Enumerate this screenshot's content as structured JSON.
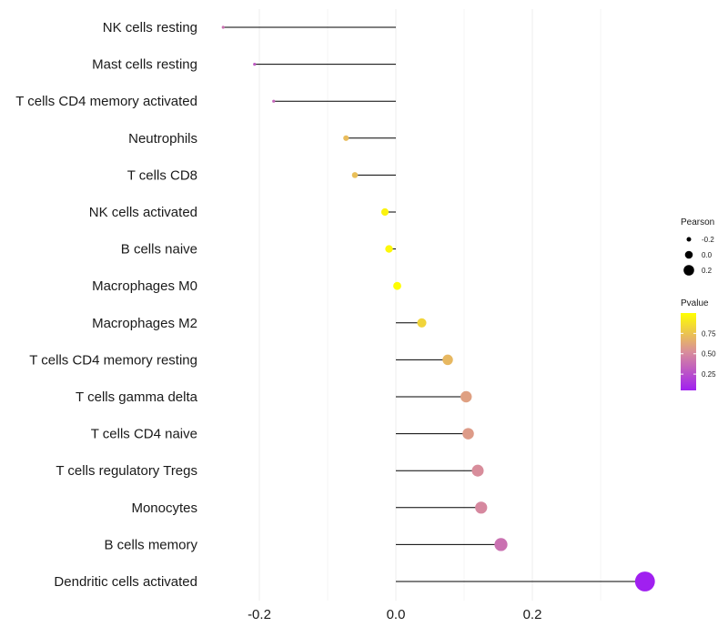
{
  "chart_data": {
    "type": "lollipop",
    "title": "",
    "xlabel": "",
    "ylabel": "",
    "xlim": [
      -0.267,
      0.375
    ],
    "x_ticks": [
      -0.2,
      0.0,
      0.2
    ],
    "x_tick_labels": [
      "-0.2",
      "0.0",
      "0.2"
    ],
    "grid": true,
    "categories": [
      "NK cells resting",
      "Mast cells resting",
      "T cells CD4 memory activated",
      "Neutrophils",
      "T cells CD8",
      "NK cells activated",
      "B cells naive",
      "Macrophages M0",
      "Macrophages M2",
      "T cells CD4 memory resting",
      "T cells gamma delta",
      "T cells CD4 naive",
      "T cells regulatory  Tregs ",
      "Monocytes",
      "B cells memory",
      "Dendritic cells activated"
    ],
    "values": [
      -0.253,
      -0.207,
      -0.179,
      -0.073,
      -0.06,
      -0.016,
      -0.01,
      0.002,
      0.038,
      0.076,
      0.103,
      0.106,
      0.12,
      0.125,
      0.154,
      0.365
    ],
    "pvalues": [
      0.4,
      0.3,
      0.35,
      0.72,
      0.73,
      0.95,
      0.97,
      0.99,
      0.82,
      0.7,
      0.6,
      0.58,
      0.52,
      0.5,
      0.4,
      0.05
    ],
    "size_legend": {
      "title": "Pearson",
      "values": [
        -0.2,
        0.0,
        0.2
      ],
      "labels": [
        "-0.2",
        "0.0",
        "0.2"
      ]
    },
    "color_legend": {
      "title": "Pvalue",
      "breaks": [
        0.25,
        0.5,
        0.75
      ],
      "labels": [
        "0.25",
        "0.50",
        "0.75"
      ],
      "range": [
        0.05,
        1.0
      ],
      "low_color": "#a020f0",
      "mid_color": "#d98e9a",
      "high_color": "#ffff00"
    },
    "legend_position": "right"
  }
}
